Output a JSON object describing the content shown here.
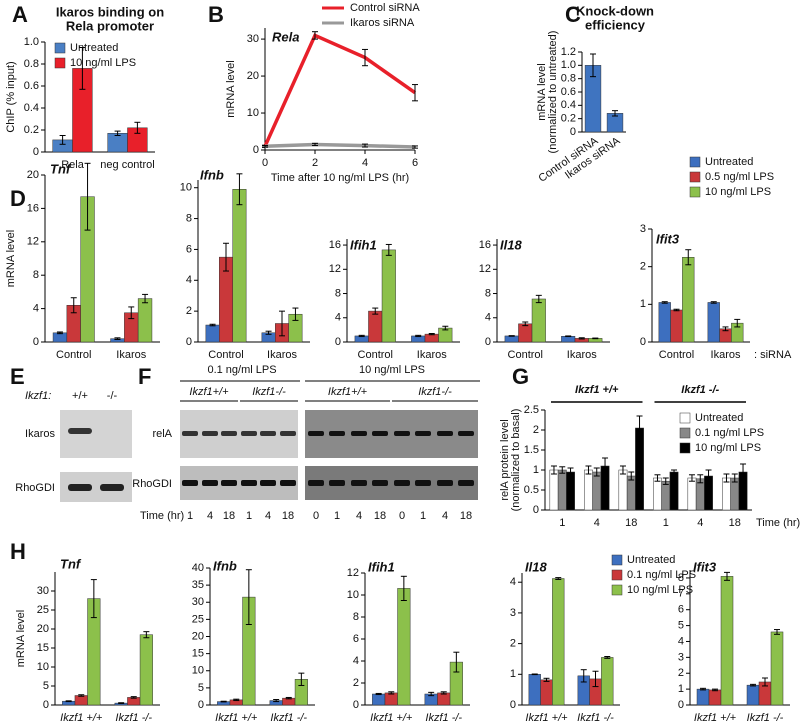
{
  "figure": {
    "panel_labels": [
      "A",
      "B",
      "C",
      "D",
      "E",
      "F",
      "G",
      "H"
    ],
    "blots": {
      "E": {
        "genotype_label": "Ikzf1:",
        "genotypes": [
          "+/+",
          "-/-"
        ],
        "rows": [
          "Ikaros",
          "RhoGDI"
        ]
      },
      "F": {
        "conditions": [
          "0.1 ng/ml LPS",
          "10 ng/ml LPS"
        ],
        "genotypes": [
          "Ikzf1+/+",
          "Ikzf1-/-",
          "Ikzf1+/+",
          "Ikzf1-/-"
        ],
        "rows": [
          "relA",
          "RhoGDI"
        ],
        "time_label": "Time (hr)",
        "lanes": [
          "1",
          "4",
          "18",
          "1",
          "4",
          "18",
          "0",
          "1",
          "4",
          "18",
          "0",
          "1",
          "4",
          "18"
        ]
      }
    }
  },
  "chart_data": [
    {
      "type": "bar",
      "title": [
        "Ikaros binding on",
        "Rela promoter"
      ],
      "ylabel": "ChIP (% input)",
      "categories": [
        "Rela",
        "neg control"
      ],
      "series": [
        {
          "name": "Untreated",
          "color": "#4a7fc4",
          "values": [
            0.11,
            0.17
          ],
          "errors": [
            0.04,
            0.02
          ]
        },
        {
          "name": "10 ng/ml LPS",
          "color": "#e8202a",
          "values": [
            0.76,
            0.22
          ],
          "errors": [
            0.19,
            0.05
          ]
        }
      ],
      "ylim": [
        0,
        1
      ],
      "yticks": [
        0,
        0.2,
        0.4,
        0.6,
        0.8,
        {
          "value": 1,
          "label": "1.0"
        }
      ],
      "legend": "top-left"
    },
    {
      "type": "line",
      "title": "Rela",
      "xlabel": "Time after 10 ng/ml LPS (hr)",
      "ylabel": "mRNA level",
      "x": [
        0,
        2,
        4,
        6
      ],
      "series": [
        {
          "name": "Control siRNA",
          "color": "#e8202a",
          "values": [
            1,
            31,
            25,
            15.5
          ],
          "errors": [
            0.3,
            1,
            2.2,
            2.2
          ]
        },
        {
          "name": "Ikaros siRNA",
          "color": "#999999",
          "values": [
            1,
            1.5,
            1.2,
            0.8
          ],
          "errors": [
            0.2,
            0.3,
            0.4,
            0.3
          ]
        }
      ],
      "xlim": [
        0,
        6
      ],
      "xticks": [
        0,
        2,
        4,
        6
      ],
      "ylim": [
        0,
        33
      ],
      "yticks": [
        0,
        10,
        20,
        30
      ],
      "legend": "top-right"
    },
    {
      "type": "bar",
      "title": [
        "Knock-down",
        "efficiency"
      ],
      "ylabel": [
        "mRNA level",
        "(normalized to untreated)"
      ],
      "categories": [
        "Control siRNA",
        "Ikaros siRNA"
      ],
      "series": [
        {
          "color": "#3f74c0",
          "values": [
            1.0,
            0.28
          ],
          "errors": [
            0.17,
            0.04
          ]
        }
      ],
      "ylim": [
        0,
        1.2
      ],
      "yticks": [
        0,
        0.2,
        0.4,
        0.6,
        0.8,
        {
          "value": 1,
          "label": "1.0"
        },
        1.2
      ]
    },
    {
      "type": "bar",
      "title": "Tnf",
      "ylabel": "mRNA level",
      "categories": [
        "Control",
        "Ikaros"
      ],
      "series": [
        {
          "color": "#3d6fbf",
          "values": [
            1.1,
            0.4
          ],
          "errors": [
            0.1,
            0.1
          ]
        },
        {
          "color": "#c9383a",
          "values": [
            4.4,
            3.5
          ],
          "errors": [
            0.9,
            0.7
          ]
        },
        {
          "color": "#8cc04b",
          "values": [
            17.4,
            5.2
          ],
          "errors": [
            4,
            0.5
          ]
        }
      ],
      "ylim": [
        0,
        20
      ],
      "yticks": [
        0,
        4,
        8,
        12,
        16,
        20
      ]
    },
    {
      "type": "bar",
      "title": "Ifnb",
      "categories": [
        "Control",
        "Ikaros"
      ],
      "series": [
        {
          "color": "#3d6fbf",
          "values": [
            1.1,
            0.6
          ],
          "errors": [
            0.05,
            0.1
          ]
        },
        {
          "color": "#c9383a",
          "values": [
            5.5,
            1.2
          ],
          "errors": [
            0.9,
            0.8
          ]
        },
        {
          "color": "#8cc04b",
          "values": [
            9.9,
            1.8
          ],
          "errors": [
            1,
            0.4
          ]
        }
      ],
      "ylim": [
        0,
        10.5
      ],
      "yticks": [
        0,
        2,
        4,
        6,
        8,
        10
      ]
    },
    {
      "type": "bar",
      "title": "Ifih1",
      "categories": [
        "Control",
        "Ikaros"
      ],
      "series": [
        {
          "color": "#3d6fbf",
          "values": [
            1.0,
            1.0
          ],
          "errors": [
            0.1,
            0.1
          ]
        },
        {
          "color": "#c9383a",
          "values": [
            5.1,
            1.3
          ],
          "errors": [
            0.5,
            0.1
          ]
        },
        {
          "color": "#8cc04b",
          "values": [
            15.2,
            2.3
          ],
          "errors": [
            0.9,
            0.3
          ]
        }
      ],
      "ylim": [
        0,
        17
      ],
      "yticks": [
        0,
        4,
        8,
        12,
        16
      ]
    },
    {
      "type": "bar",
      "title": "Il18",
      "categories": [
        "Control",
        "Ikaros"
      ],
      "series": [
        {
          "color": "#3d6fbf",
          "values": [
            1.0,
            0.95
          ],
          "errors": [
            0.05,
            0.05
          ]
        },
        {
          "color": "#c9383a",
          "values": [
            3.0,
            0.6
          ],
          "errors": [
            0.3,
            0.1
          ]
        },
        {
          "color": "#8cc04b",
          "values": [
            7.1,
            0.6
          ],
          "errors": [
            0.6,
            0.05
          ]
        }
      ],
      "ylim": [
        0,
        17
      ],
      "yticks": [
        0,
        4,
        8,
        12,
        16
      ]
    },
    {
      "type": "bar",
      "title": "Ifit3",
      "annotation": ": siRNA",
      "categories": [
        "Control",
        "Ikaros"
      ],
      "series": [
        {
          "name": "Untreated",
          "color": "#3d6fbf",
          "values": [
            1.05,
            1.05
          ],
          "errors": [
            0.02,
            0.02
          ]
        },
        {
          "name": "0.5 ng/ml LPS",
          "color": "#c9383a",
          "values": [
            0.85,
            0.35
          ],
          "errors": [
            0.02,
            0.05
          ]
        },
        {
          "name": "10 ng/ml LPS",
          "color": "#8cc04b",
          "values": [
            2.25,
            0.5
          ],
          "errors": [
            0.2,
            0.1
          ]
        }
      ],
      "ylim": [
        0,
        3
      ],
      "yticks": [
        0,
        1,
        2,
        3
      ],
      "legend": "top-right"
    },
    {
      "type": "bar",
      "ylabel": [
        "relA protein level",
        "(normalized to basal)"
      ],
      "xlabel": "Time (hr)",
      "groups": [
        "Ikzf1 +/+",
        "Ikzf1 -/-"
      ],
      "categories": [
        "1",
        "4",
        "18",
        "1",
        "4",
        "18"
      ],
      "series": [
        {
          "name": "Untreated",
          "color": "#ffffff",
          "values": [
            1,
            1,
            1,
            0.8,
            0.8,
            0.8
          ],
          "errors": [
            0.1,
            0.1,
            0.1,
            0.08,
            0.08,
            0.1
          ]
        },
        {
          "name": "0.1 ng/ml LPS",
          "color": "#888888",
          "values": [
            1,
            0.95,
            0.85,
            0.72,
            0.78,
            0.8
          ],
          "errors": [
            0.08,
            0.1,
            0.1,
            0.08,
            0.1,
            0.1
          ]
        },
        {
          "name": "10 ng/ml LPS",
          "color": "#000000",
          "values": [
            0.95,
            1.1,
            2.05,
            0.95,
            0.85,
            0.95
          ],
          "errors": [
            0.1,
            0.2,
            0.3,
            0.05,
            0.15,
            0.2
          ]
        }
      ],
      "ylim": [
        0,
        2.5
      ],
      "yticks": [
        0,
        0.5,
        1,
        1.5,
        2,
        2.5
      ],
      "legend": "top-right"
    },
    {
      "type": "bar",
      "title": "Tnf",
      "ylabel": "mRNA level",
      "categories": [
        "Ikzf1 +/+",
        "Ikzf1 -/-"
      ],
      "series": [
        {
          "color": "#3d6fbf",
          "values": [
            1,
            0.5
          ],
          "errors": [
            0.1,
            0.1
          ]
        },
        {
          "color": "#c9383a",
          "values": [
            2.5,
            2
          ],
          "errors": [
            0.2,
            0.2
          ]
        },
        {
          "color": "#8cc04b",
          "values": [
            28,
            18.5
          ],
          "errors": [
            5,
            0.8
          ]
        }
      ],
      "ylim": [
        0,
        35
      ],
      "yticks": [
        0,
        5,
        10,
        15,
        20,
        25,
        30
      ]
    },
    {
      "type": "bar",
      "title": "Ifnb",
      "categories": [
        "Ikzf1 +/+",
        "Ikzf1 -/-"
      ],
      "series": [
        {
          "color": "#3d6fbf",
          "values": [
            1,
            1.3
          ],
          "errors": [
            0.1,
            0.3
          ]
        },
        {
          "color": "#c9383a",
          "values": [
            1.5,
            2
          ],
          "errors": [
            0.2,
            0.2
          ]
        },
        {
          "color": "#8cc04b",
          "values": [
            31.5,
            7.5
          ],
          "errors": [
            8,
            1.8
          ]
        }
      ],
      "ylim": [
        0,
        40
      ],
      "yticks": [
        0,
        5,
        10,
        15,
        20,
        25,
        30,
        35,
        40
      ]
    },
    {
      "type": "bar",
      "title": "Ifih1",
      "categories": [
        "Ikzf1 +/+",
        "Ikzf1 -/-"
      ],
      "series": [
        {
          "color": "#3d6fbf",
          "values": [
            1,
            1
          ],
          "errors": [
            0.05,
            0.15
          ]
        },
        {
          "color": "#c9383a",
          "values": [
            1.1,
            1.1
          ],
          "errors": [
            0.1,
            0.1
          ]
        },
        {
          "color": "#8cc04b",
          "values": [
            10.6,
            3.9
          ],
          "errors": [
            1.1,
            0.9
          ]
        }
      ],
      "ylim": [
        0,
        12
      ],
      "yticks": [
        0,
        2,
        4,
        6,
        8,
        10,
        12
      ]
    },
    {
      "type": "bar",
      "title": "Il18",
      "categories": [
        "Ikzf1 +/+",
        "Ikzf1 -/-"
      ],
      "series": [
        {
          "color": "#3d6fbf",
          "values": [
            1,
            0.95
          ],
          "errors": [
            0.01,
            0.2
          ]
        },
        {
          "color": "#c9383a",
          "values": [
            0.82,
            0.85
          ],
          "errors": [
            0.05,
            0.25
          ]
        },
        {
          "color": "#8cc04b",
          "values": [
            4.12,
            1.55
          ],
          "errors": [
            0.03,
            0.03
          ]
        }
      ],
      "ylim": [
        0,
        4.3
      ],
      "yticks": [
        0,
        1,
        2,
        3,
        4
      ]
    },
    {
      "type": "bar",
      "title": "Ifit3",
      "categories": [
        "Ikzf1 +/+",
        "Ikzf1 -/-"
      ],
      "series": [
        {
          "name": "Untreated",
          "color": "#3d6fbf",
          "values": [
            1,
            1.25
          ],
          "errors": [
            0.05,
            0.05
          ]
        },
        {
          "name": "0.1 ng/ml LPS",
          "color": "#c9383a",
          "values": [
            0.95,
            1.45
          ],
          "errors": [
            0.05,
            0.25
          ]
        },
        {
          "name": "10 ng/ml LPS",
          "color": "#8cc04b",
          "values": [
            8.1,
            4.6
          ],
          "errors": [
            0.25,
            0.15
          ]
        }
      ],
      "ylim": [
        0,
        8.5
      ],
      "yticks": [
        0,
        1,
        2,
        3,
        4,
        5,
        6,
        7,
        8
      ],
      "legend": "top-right"
    }
  ]
}
